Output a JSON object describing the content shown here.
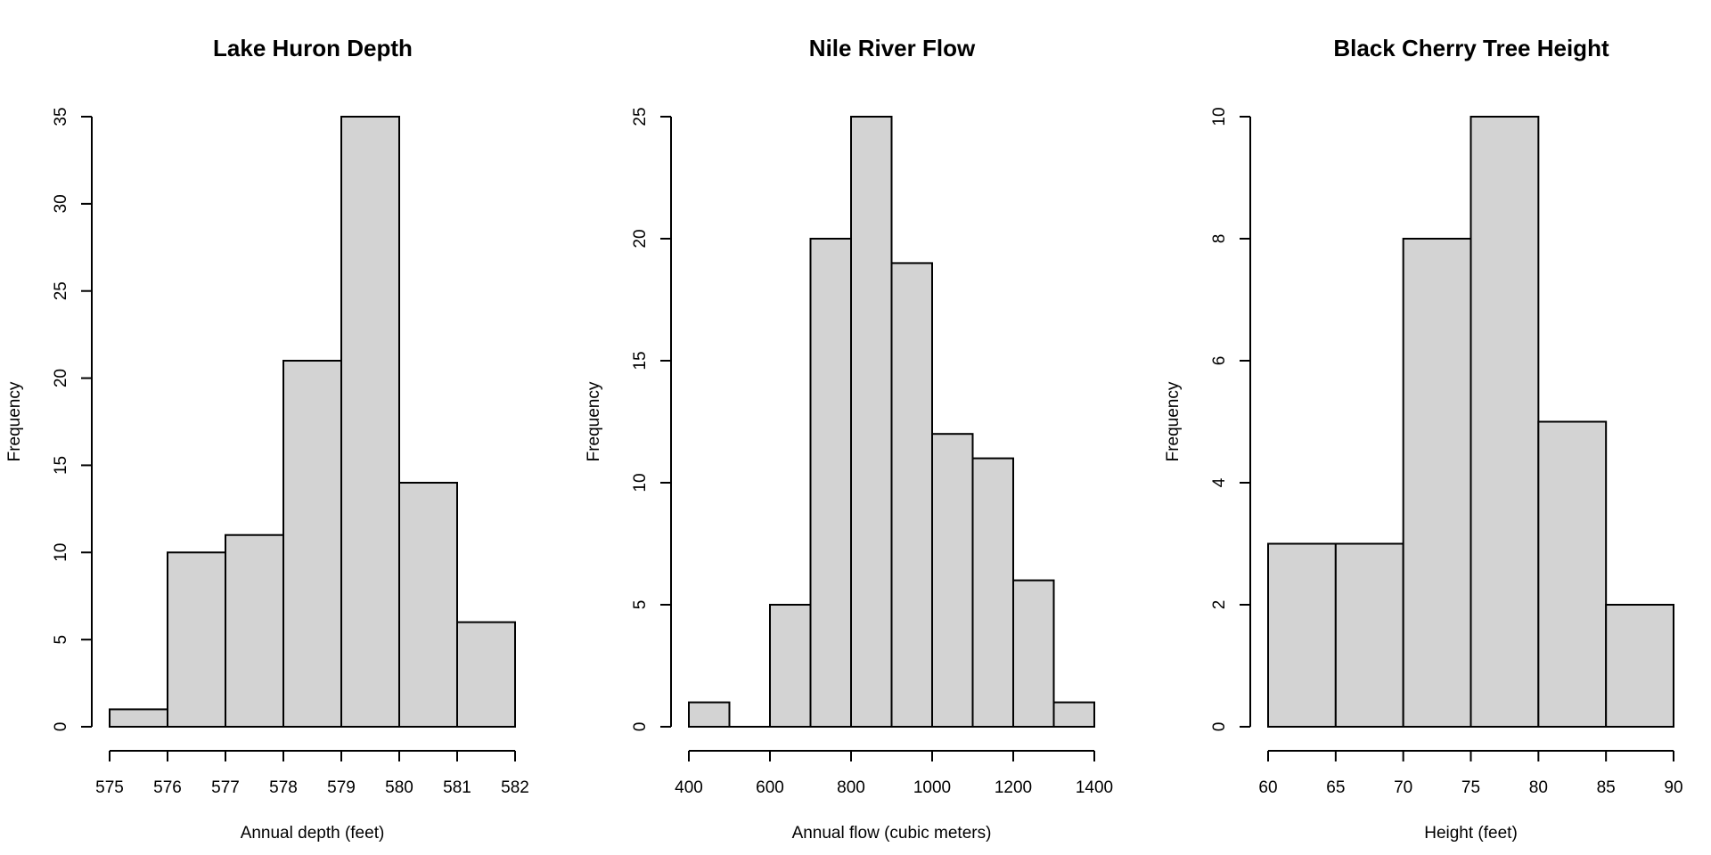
{
  "chart_data": [
    {
      "type": "bar",
      "title": "Lake Huron Depth",
      "xlabel": "Annual depth (feet)",
      "ylabel": "Frequency",
      "breaks": [
        575,
        576,
        577,
        578,
        579,
        580,
        581,
        582
      ],
      "values": [
        1,
        10,
        11,
        21,
        35,
        14,
        6
      ],
      "xticks": [
        575,
        576,
        577,
        578,
        579,
        580,
        581,
        582
      ],
      "yticks": [
        0,
        5,
        10,
        15,
        20,
        25,
        30,
        35
      ],
      "xlim": [
        575,
        582
      ],
      "ylim": [
        0,
        35
      ],
      "grid": false
    },
    {
      "type": "bar",
      "title": "Nile River Flow",
      "xlabel": "Annual flow (cubic meters)",
      "ylabel": "Frequency",
      "breaks": [
        400,
        500,
        600,
        700,
        800,
        900,
        1000,
        1100,
        1200,
        1300,
        1400
      ],
      "values": [
        1,
        0,
        5,
        20,
        25,
        19,
        12,
        11,
        6,
        1
      ],
      "xticks": [
        400,
        600,
        800,
        1000,
        1200,
        1400
      ],
      "yticks": [
        0,
        5,
        10,
        15,
        20,
        25
      ],
      "xlim": [
        400,
        1400
      ],
      "ylim": [
        0,
        25
      ],
      "grid": false
    },
    {
      "type": "bar",
      "title": "Black Cherry Tree Height",
      "xlabel": "Height (feet)",
      "ylabel": "Frequency",
      "breaks": [
        60,
        65,
        70,
        75,
        80,
        85,
        90
      ],
      "values": [
        3,
        3,
        8,
        10,
        5,
        2
      ],
      "xticks": [
        60,
        65,
        70,
        75,
        80,
        85,
        90
      ],
      "yticks": [
        0,
        2,
        4,
        6,
        8,
        10
      ],
      "xlim": [
        60,
        90
      ],
      "ylim": [
        0,
        10
      ],
      "grid": false
    }
  ]
}
